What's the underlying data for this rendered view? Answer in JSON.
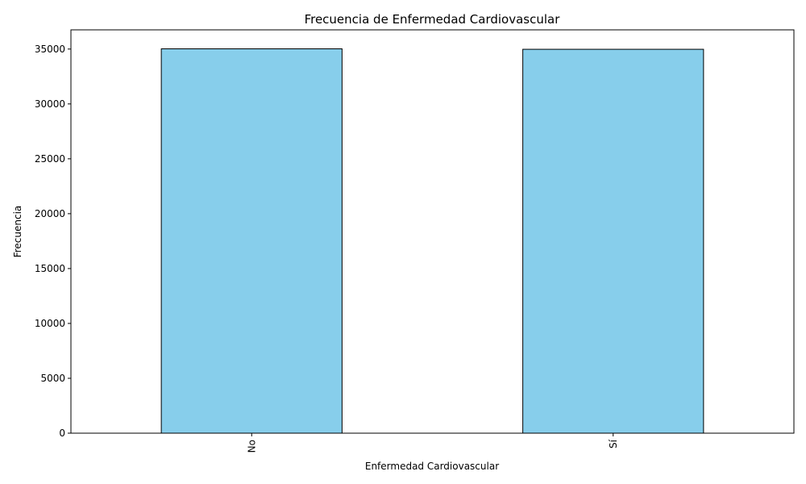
{
  "chart_data": {
    "type": "bar",
    "title": "Frecuencia de Enfermedad Cardiovascular",
    "xlabel": "Enfermedad Cardiovascular",
    "ylabel": "Frecuencia",
    "categories": [
      "No",
      "Sí"
    ],
    "values": [
      35021,
      34979
    ],
    "ylim": [
      0,
      36750
    ],
    "yticks": [
      0,
      5000,
      10000,
      15000,
      20000,
      25000,
      30000,
      35000
    ],
    "bar_color": "#87CEEB",
    "bar_edge_color": "#000000",
    "grid": false,
    "legend": "none"
  }
}
